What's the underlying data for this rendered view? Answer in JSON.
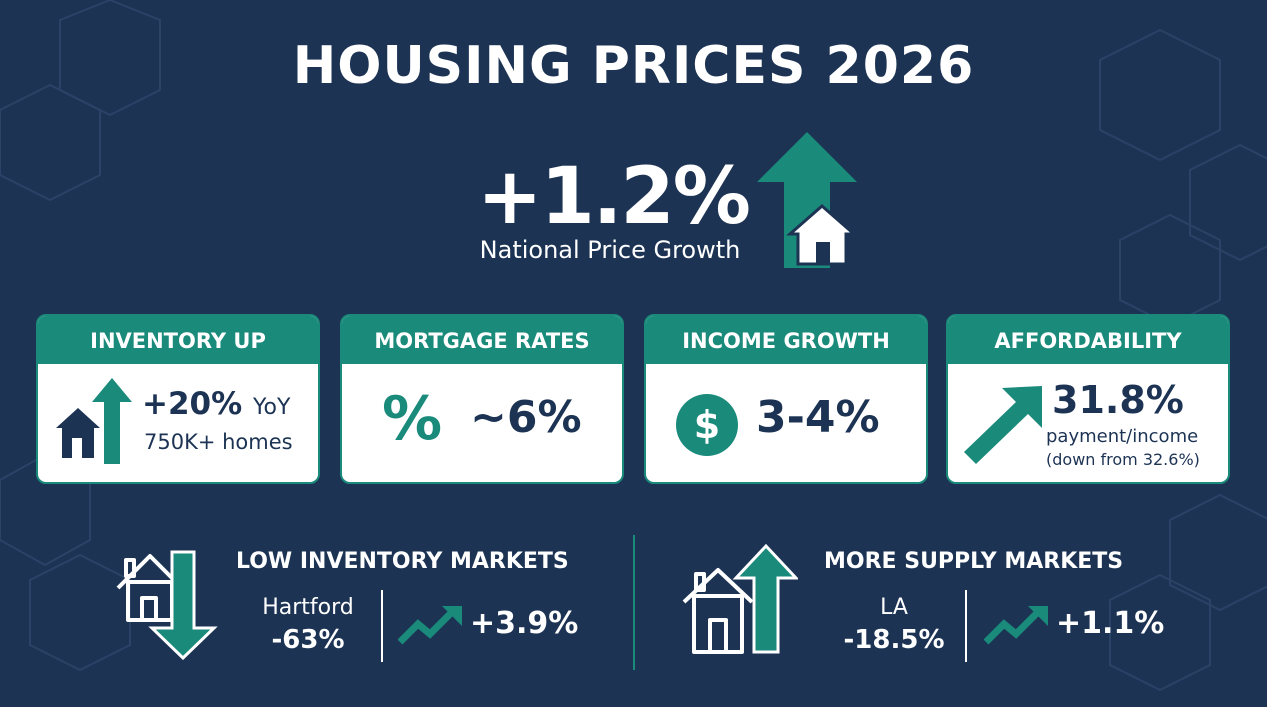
{
  "title": "HOUSING PRICES 2026",
  "hero": {
    "value": "+1.2%",
    "label": "National Price Growth"
  },
  "cards": [
    {
      "header": "INVENTORY UP",
      "value": "+20%",
      "unit": "YoY",
      "sub": "750K+ homes",
      "icon": "house-arrow-up-icon"
    },
    {
      "header": "MORTGAGE RATES",
      "symbol": "%",
      "value": "~6%",
      "icon": "percent-icon"
    },
    {
      "header": "INCOME GROWTH",
      "symbol": "$",
      "value": "3-4%",
      "icon": "dollar-circle-icon"
    },
    {
      "header": "AFFORDABILITY",
      "value": "31.8%",
      "sub": "payment/income",
      "note": "(down from 32.6%)",
      "icon": "arrow-up-right-icon"
    }
  ],
  "markets": [
    {
      "title": "LOW INVENTORY MARKETS",
      "city": "Hartford",
      "inventory_change": "-63%",
      "price_change": "+3.9%",
      "icon": "house-arrow-down-icon"
    },
    {
      "title": "MORE SUPPLY MARKETS",
      "city": "LA",
      "inventory_change": "-18.5%",
      "price_change": "+1.1%",
      "icon": "house-arrow-up-icon"
    }
  ],
  "colors": {
    "background": "#1c3354",
    "accent": "#1a8a7b",
    "card": "#ffffff",
    "text_dark": "#1c3354"
  }
}
